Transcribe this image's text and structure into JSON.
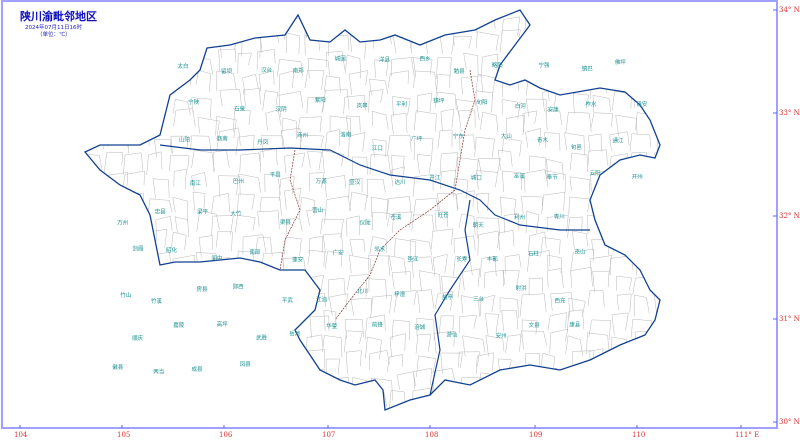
{
  "header": {
    "title": "陕川渝毗邻地区",
    "datetime": "2024年07月11日16时",
    "unit": "（单位：℃）"
  },
  "axes": {
    "longitude_labels": [
      "104",
      "105",
      "106",
      "107",
      "108",
      "109",
      "110",
      "111° E"
    ],
    "latitude_labels": [
      "34° N",
      "33° N",
      "32° N",
      "31° N",
      "30° N"
    ]
  },
  "colors": {
    "frame": "#a0a0ff",
    "axis_labels": "#e03030",
    "province_border": "#104090",
    "county_border": "#b8b8b8",
    "place_labels": "#189090",
    "title": "#1010c0"
  },
  "places": [
    "太白",
    "留坝",
    "汉台",
    "南郑",
    "城固",
    "洋县",
    "西乡",
    "勉县",
    "略阳",
    "宁强",
    "镇巴",
    "佛坪",
    "宁陕",
    "石泉",
    "汉阴",
    "紫阳",
    "岚皋",
    "平利",
    "镇坪",
    "旬阳",
    "白河",
    "安康",
    "柞水",
    "镇安",
    "山阳",
    "商南",
    "丹凤",
    "商州",
    "洛南",
    "江口",
    "广坪",
    "宁东",
    "大山",
    "青木",
    "旬邑",
    "通江",
    "南江",
    "巴州",
    "平昌",
    "万源",
    "宣汉",
    "达川",
    "开江",
    "城口",
    "巫溪",
    "奉节",
    "云阳",
    "开州",
    "万州",
    "忠县",
    "梁平",
    "大竹",
    "渠县",
    "营山",
    "仪陇",
    "苍溪",
    "旺苍",
    "朝天",
    "利州",
    "青川",
    "剑阁",
    "昭化",
    "阆中",
    "南部",
    "蓬安",
    "广安",
    "邻水",
    "垫江",
    "长寿",
    "丰都",
    "石柱",
    "巫山",
    "竹山",
    "竹溪",
    "房县",
    "郧西",
    "平武",
    "江油",
    "北川",
    "梓潼",
    "盐亭",
    "三台",
    "射洪",
    "西充",
    "顺庆",
    "嘉陵",
    "高坪",
    "武胜",
    "岳池",
    "华蓥",
    "前锋",
    "涪城",
    "游仙",
    "安州",
    "文县",
    "康县",
    "徽县",
    "两当",
    "成县",
    "凤县"
  ]
}
